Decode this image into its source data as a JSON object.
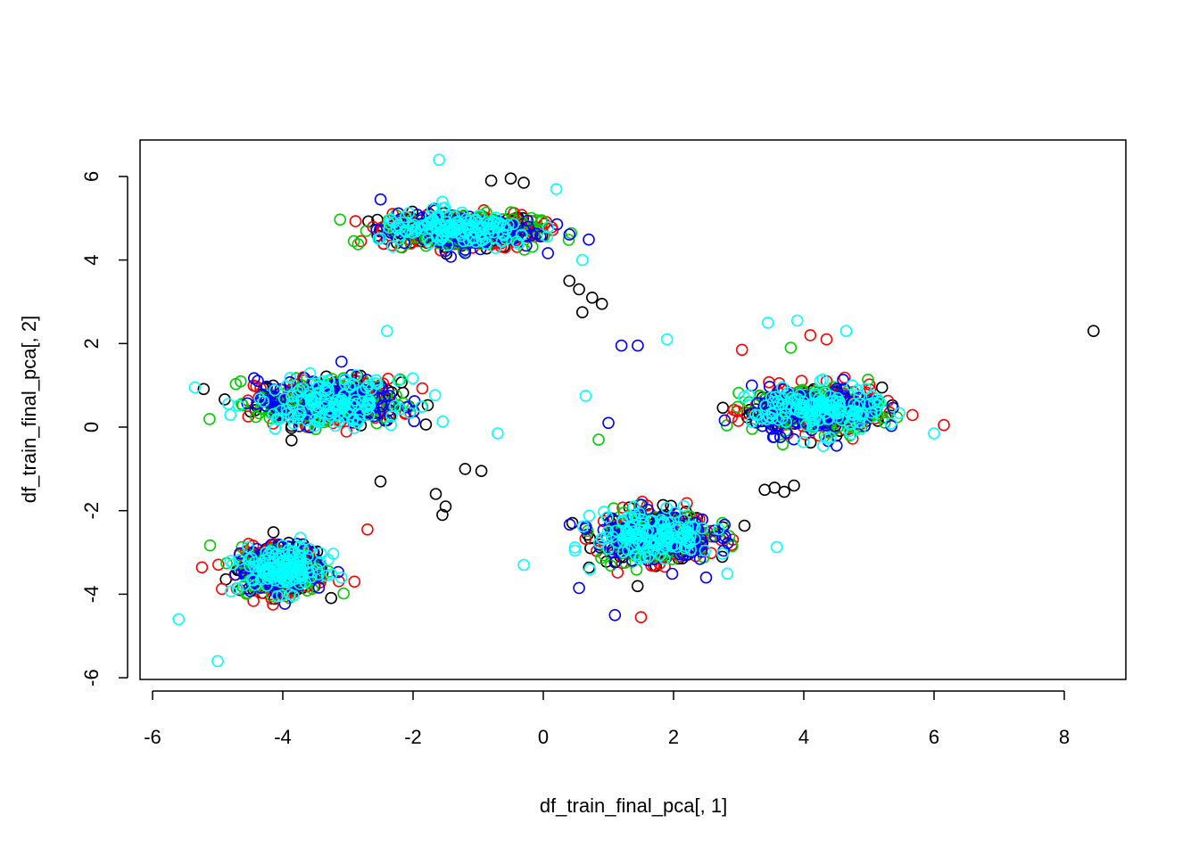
{
  "chart_data": {
    "type": "scatter",
    "title": "",
    "xlabel": "df_train_final_pca[, 1]",
    "ylabel": "df_train_final_pca[, 2]",
    "xlim": [
      -6.2,
      9.0
    ],
    "ylim": [
      -6.2,
      6.9
    ],
    "x_ticks": [
      -6,
      -4,
      -2,
      0,
      2,
      4,
      6,
      8
    ],
    "y_ticks": [
      -6,
      -4,
      -2,
      0,
      2,
      4,
      6
    ],
    "grid": false,
    "legend": "none",
    "marker": "open-circle",
    "series_colors": [
      "#000000",
      "#ff0000",
      "#00cd00",
      "#0000ff",
      "#00ffff"
    ],
    "clusters": [
      {
        "name": "top",
        "center": [
          -1.3,
          4.7
        ],
        "spread": [
          1.1,
          0.35
        ]
      },
      {
        "name": "upper-left",
        "center": [
          -3.3,
          0.6
        ],
        "spread": [
          1.0,
          0.45
        ]
      },
      {
        "name": "lower-left",
        "center": [
          -4.0,
          -3.4
        ],
        "spread": [
          0.6,
          0.45
        ]
      },
      {
        "name": "lower-middle",
        "center": [
          1.7,
          -2.6
        ],
        "spread": [
          0.8,
          0.5
        ]
      },
      {
        "name": "right",
        "center": [
          4.2,
          0.4
        ],
        "spread": [
          0.9,
          0.45
        ]
      }
    ],
    "points": [
      {
        "x": 8.45,
        "y": 2.3,
        "color": "#000000"
      },
      {
        "x": 0.6,
        "y": 2.75,
        "color": "#000000"
      },
      {
        "x": 0.9,
        "y": 2.95,
        "color": "#000000"
      },
      {
        "x": 0.75,
        "y": 3.1,
        "color": "#000000"
      },
      {
        "x": 0.55,
        "y": 3.3,
        "color": "#000000"
      },
      {
        "x": 0.4,
        "y": 3.5,
        "color": "#000000"
      },
      {
        "x": -0.8,
        "y": 5.9,
        "color": "#000000"
      },
      {
        "x": -0.5,
        "y": 5.95,
        "color": "#000000"
      },
      {
        "x": -0.3,
        "y": 5.85,
        "color": "#000000"
      },
      {
        "x": -1.65,
        "y": -1.6,
        "color": "#000000"
      },
      {
        "x": -1.5,
        "y": -1.9,
        "color": "#000000"
      },
      {
        "x": -1.2,
        "y": -1.0,
        "color": "#000000"
      },
      {
        "x": -0.95,
        "y": -1.05,
        "color": "#000000"
      },
      {
        "x": -2.5,
        "y": -1.3,
        "color": "#000000"
      },
      {
        "x": -1.55,
        "y": -2.1,
        "color": "#000000"
      },
      {
        "x": 3.55,
        "y": -1.45,
        "color": "#000000"
      },
      {
        "x": 3.7,
        "y": -1.55,
        "color": "#000000"
      },
      {
        "x": 3.4,
        "y": -1.5,
        "color": "#000000"
      },
      {
        "x": 3.85,
        "y": -1.4,
        "color": "#000000"
      },
      {
        "x": -1.6,
        "y": 6.4,
        "color": "#00ffff"
      },
      {
        "x": 0.2,
        "y": 5.7,
        "color": "#00ffff"
      },
      {
        "x": 0.6,
        "y": 4.0,
        "color": "#00ffff"
      },
      {
        "x": -5.35,
        "y": 0.95,
        "color": "#00ffff"
      },
      {
        "x": -2.4,
        "y": 2.3,
        "color": "#00ffff"
      },
      {
        "x": -0.7,
        "y": -0.15,
        "color": "#00ffff"
      },
      {
        "x": 0.65,
        "y": 0.75,
        "color": "#00ffff"
      },
      {
        "x": 1.9,
        "y": 2.1,
        "color": "#00ffff"
      },
      {
        "x": 3.45,
        "y": 2.5,
        "color": "#00ffff"
      },
      {
        "x": 3.9,
        "y": 2.55,
        "color": "#00ffff"
      },
      {
        "x": 4.65,
        "y": 2.3,
        "color": "#00ffff"
      },
      {
        "x": 6.0,
        "y": -0.15,
        "color": "#00ffff"
      },
      {
        "x": -5.6,
        "y": -4.6,
        "color": "#00ffff"
      },
      {
        "x": -5.0,
        "y": -5.6,
        "color": "#00ffff"
      },
      {
        "x": -0.3,
        "y": -3.3,
        "color": "#00ffff"
      },
      {
        "x": 4.3,
        "y": -0.45,
        "color": "#00ffff"
      },
      {
        "x": 1.2,
        "y": 1.95,
        "color": "#0000ff"
      },
      {
        "x": 1.45,
        "y": 1.95,
        "color": "#0000ff"
      },
      {
        "x": 1.0,
        "y": 0.1,
        "color": "#0000ff"
      },
      {
        "x": 1.1,
        "y": -4.5,
        "color": "#0000ff"
      },
      {
        "x": 2.5,
        "y": -3.6,
        "color": "#0000ff"
      },
      {
        "x": 0.55,
        "y": -3.85,
        "color": "#0000ff"
      },
      {
        "x": 1.5,
        "y": -4.55,
        "color": "#ff0000"
      },
      {
        "x": 6.15,
        "y": 0.05,
        "color": "#ff0000"
      },
      {
        "x": -2.7,
        "y": -2.45,
        "color": "#ff0000"
      },
      {
        "x": 3.05,
        "y": 1.85,
        "color": "#ff0000"
      },
      {
        "x": 4.1,
        "y": 2.2,
        "color": "#ff0000"
      },
      {
        "x": 4.35,
        "y": 2.1,
        "color": "#ff0000"
      },
      {
        "x": -2.9,
        "y": -3.7,
        "color": "#ff0000"
      },
      {
        "x": 0.85,
        "y": -0.3,
        "color": "#00cd00"
      },
      {
        "x": 3.8,
        "y": 1.9,
        "color": "#00cd00"
      }
    ]
  }
}
